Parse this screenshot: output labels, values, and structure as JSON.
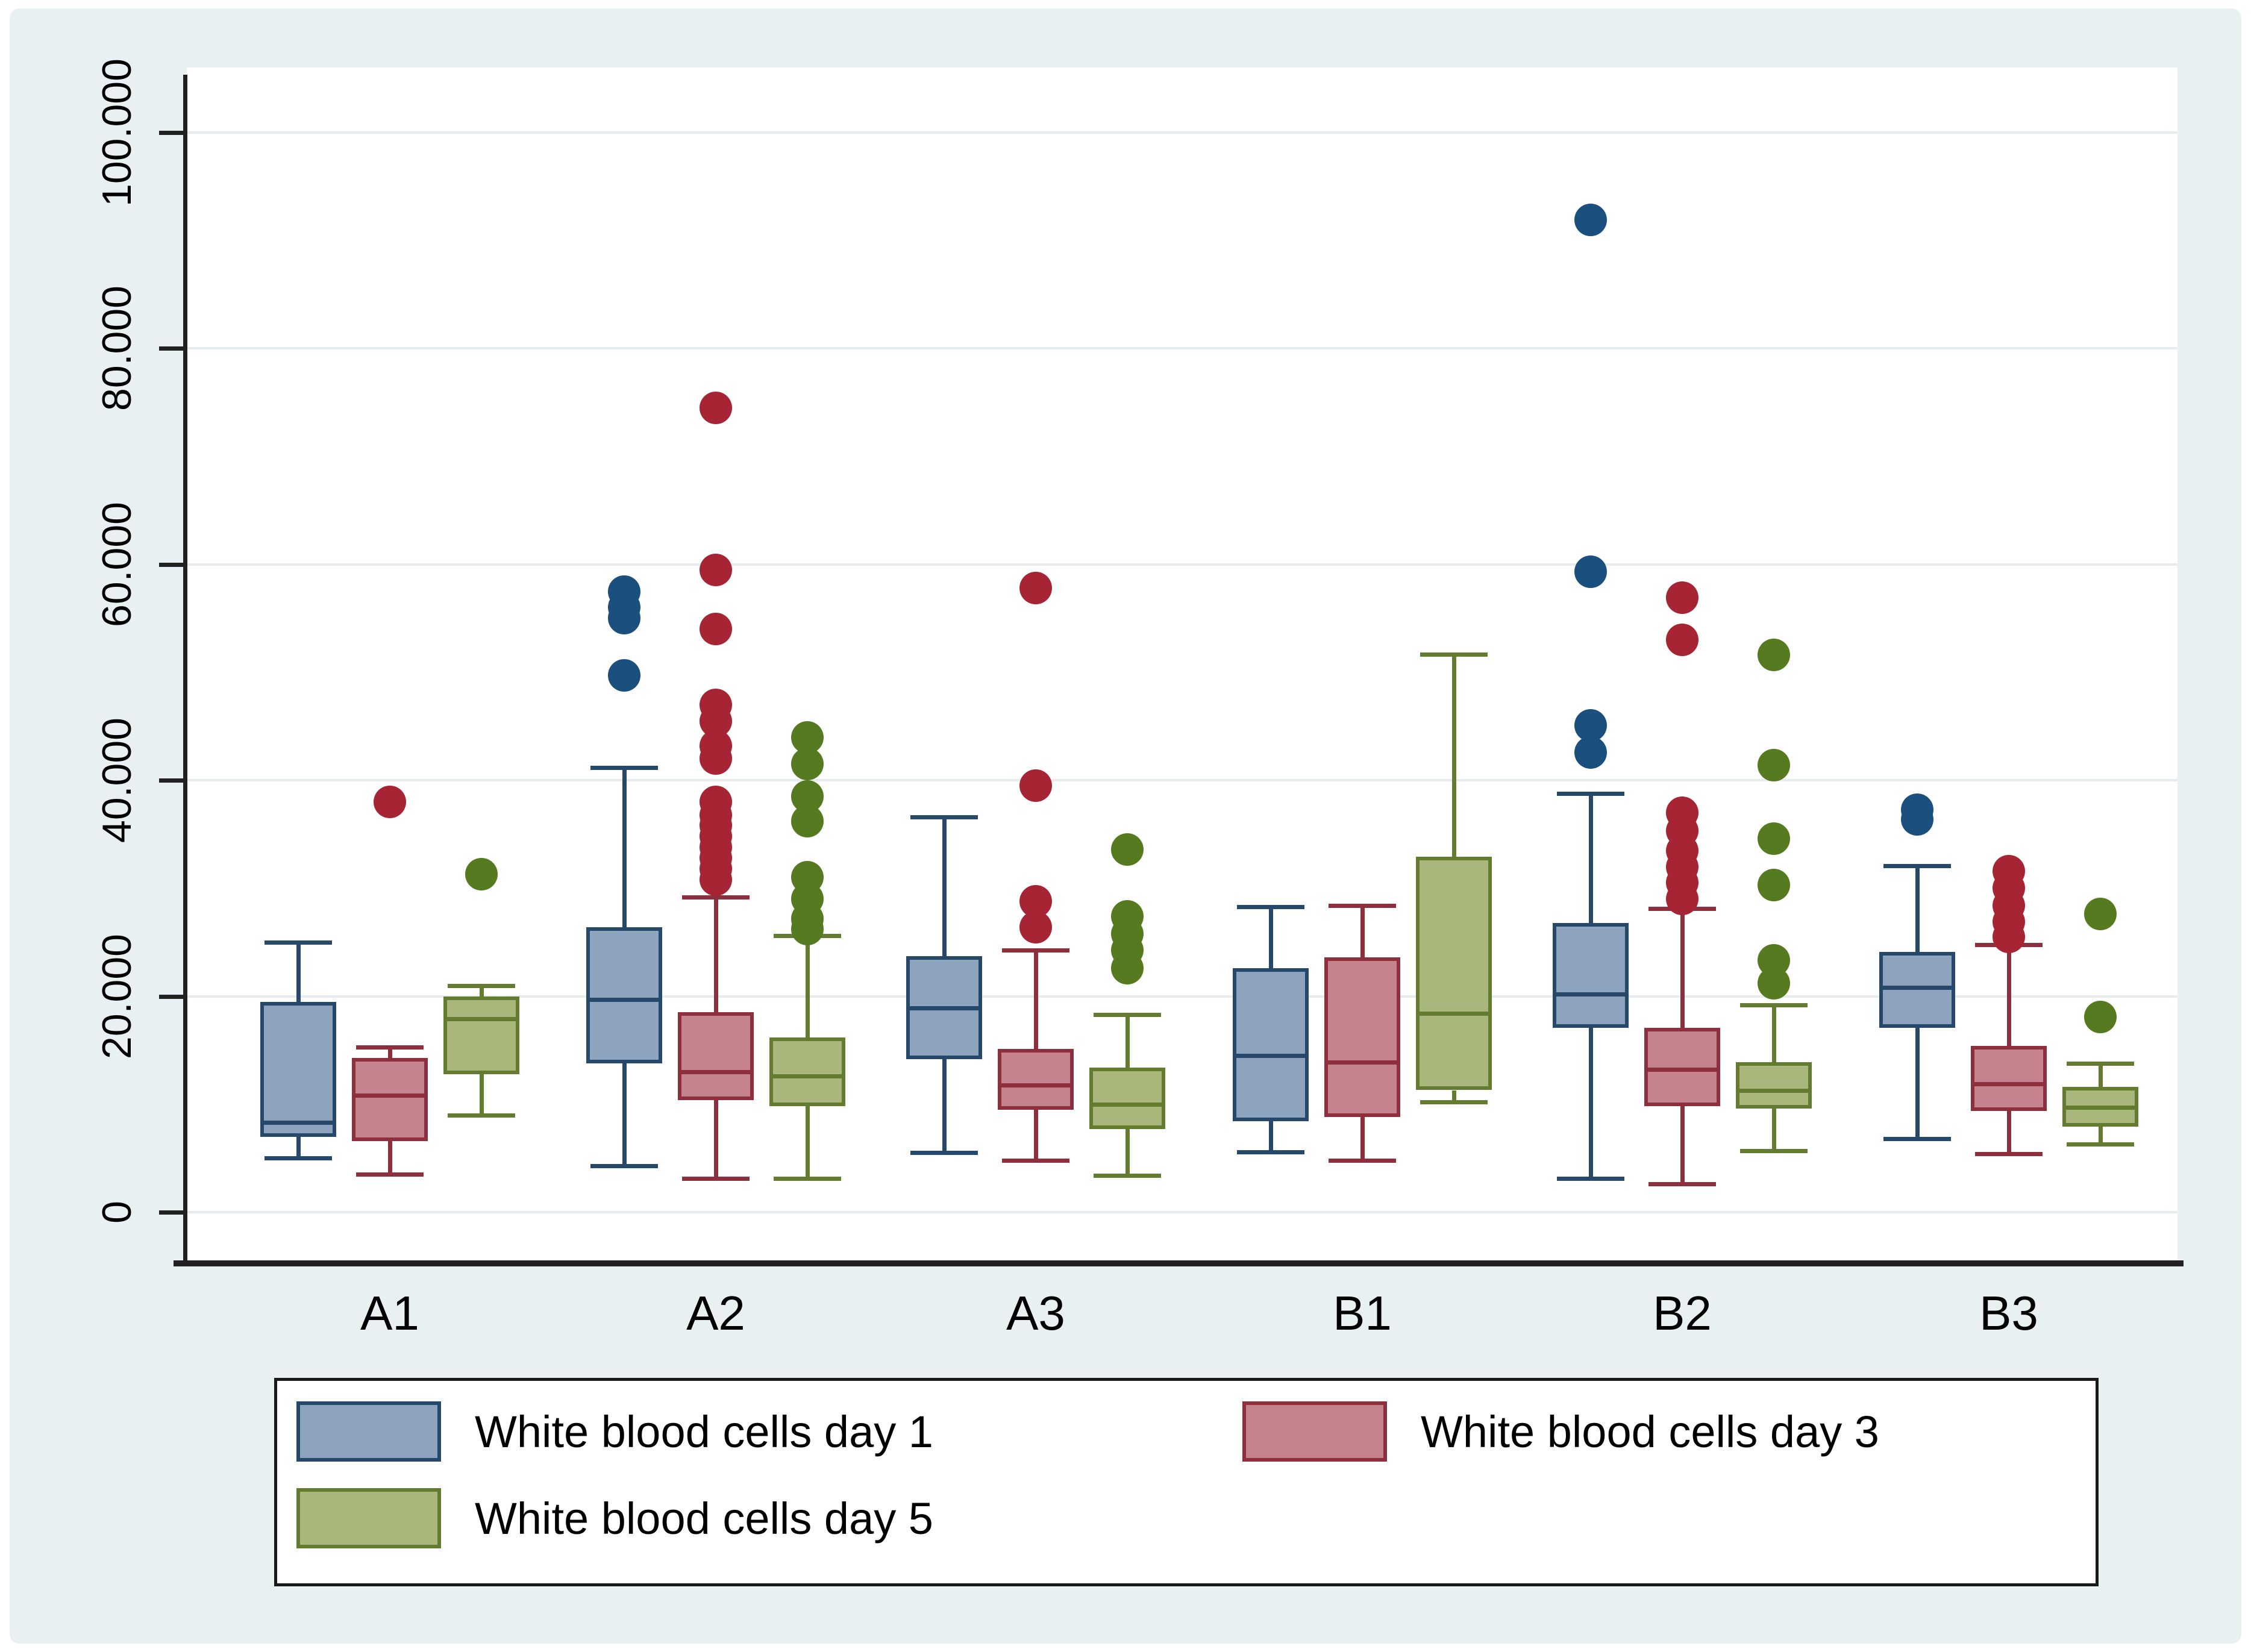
{
  "figure": {
    "outer_background": "#ffffff",
    "panel_background": "#e9f0f2",
    "plot_background": "#ffffff",
    "gridline_color": "#e7edee",
    "axis_color": "#212121"
  },
  "y_axis": {
    "ticks": [
      {
        "value": 0,
        "label": "0"
      },
      {
        "value": 20000,
        "label": "20.000"
      },
      {
        "value": 40000,
        "label": "40.000"
      },
      {
        "value": 60000,
        "label": "60.000"
      },
      {
        "value": 80000,
        "label": "80.000"
      },
      {
        "value": 100000,
        "label": "100.000"
      }
    ]
  },
  "chart_data": {
    "type": "box",
    "title": "",
    "xlabel": "",
    "ylabel": "",
    "ylim": [
      0,
      104000
    ],
    "grid": "horizontal",
    "legend_position": "bottom",
    "categories": [
      "A1",
      "A2",
      "A3",
      "B1",
      "B2",
      "B3"
    ],
    "series": [
      {
        "name": "day1",
        "label": "White blood cells day 1",
        "fill": "#8ea4be",
        "stroke": "#25486b",
        "dot": "#1b4f7e",
        "boxes": [
          {
            "low": 5000,
            "q1": 7000,
            "median": 8300,
            "q3": 19500,
            "high": 25000,
            "outliers": []
          },
          {
            "low": 4300,
            "q1": 13800,
            "median": 19700,
            "q3": 26400,
            "high": 41200,
            "outliers": [
              57500,
              56000,
              55000,
              49700
            ]
          },
          {
            "low": 5500,
            "q1": 14200,
            "median": 18900,
            "q3": 23700,
            "high": 36600,
            "outliers": []
          },
          {
            "low": 5600,
            "q1": 8400,
            "median": 14500,
            "q3": 22600,
            "high": 28300,
            "outliers": []
          },
          {
            "low": 3100,
            "q1": 17100,
            "median": 20200,
            "q3": 26800,
            "high": 38800,
            "outliers": [
              91900,
              59300,
              45100,
              42600
            ]
          },
          {
            "low": 6800,
            "q1": 17100,
            "median": 20800,
            "q3": 24100,
            "high": 32100,
            "outliers": [
              37300,
              36400
            ]
          }
        ]
      },
      {
        "name": "day3",
        "label": "White blood cells day 3",
        "fill": "#c4838d",
        "stroke": "#8d2f3c",
        "dot": "#a62433",
        "boxes": [
          {
            "low": 3500,
            "q1": 6600,
            "median": 10800,
            "q3": 14300,
            "high": 15300,
            "outliers": [
              38000
            ]
          },
          {
            "low": 3100,
            "q1": 10400,
            "median": 13000,
            "q3": 18500,
            "high": 29200,
            "outliers": [
              74500,
              59500,
              54000,
              47000,
              45500,
              43200,
              42000,
              38000,
              36800,
              35800,
              34800,
              33800,
              32800,
              31800,
              30800
            ]
          },
          {
            "low": 4800,
            "q1": 9500,
            "median": 11800,
            "q3": 15100,
            "high": 24300,
            "outliers": [
              57800,
              39500,
              28800,
              26400
            ]
          },
          {
            "low": 4800,
            "q1": 8800,
            "median": 13900,
            "q3": 23600,
            "high": 28400,
            "outliers": []
          },
          {
            "low": 2600,
            "q1": 9800,
            "median": 13200,
            "q3": 17100,
            "high": 28100,
            "outliers": [
              56900,
              53000,
              37000,
              35300,
              33500,
              32000,
              30500,
              29000
            ]
          },
          {
            "low": 5400,
            "q1": 9400,
            "median": 11900,
            "q3": 15400,
            "high": 24800,
            "outliers": [
              31600,
              30000,
              28400,
              26900,
              25500
            ]
          }
        ]
      },
      {
        "name": "day5",
        "label": "White blood cells day 5",
        "fill": "#a9b77c",
        "stroke": "#647c30",
        "dot": "#567a1f",
        "boxes": [
          {
            "low": 9000,
            "q1": 12800,
            "median": 17900,
            "q3": 20000,
            "high": 21000,
            "outliers": [
              31300
            ]
          },
          {
            "low": 3100,
            "q1": 9800,
            "median": 12600,
            "q3": 16200,
            "high": 25600,
            "outliers": [
              44000,
              41500,
              38500,
              36200,
              31000,
              29000,
              27200,
              26200
            ]
          },
          {
            "low": 3400,
            "q1": 7700,
            "median": 10000,
            "q3": 13400,
            "high": 18300,
            "outliers": [
              33600,
              27400,
              25800,
              24300,
              22600
            ]
          },
          {
            "low": 10200,
            "q1": 11300,
            "median": 18400,
            "q3": 32900,
            "high": 51700,
            "outliers": []
          },
          {
            "low": 5700,
            "q1": 9600,
            "median": 11300,
            "q3": 13900,
            "high": 19200,
            "outliers": [
              51600,
              41400,
              34600,
              30300,
              23300,
              21200
            ]
          },
          {
            "low": 6300,
            "q1": 7900,
            "median": 9700,
            "q3": 11600,
            "high": 13800,
            "outliers": [
              27600,
              18100
            ]
          }
        ]
      }
    ]
  }
}
